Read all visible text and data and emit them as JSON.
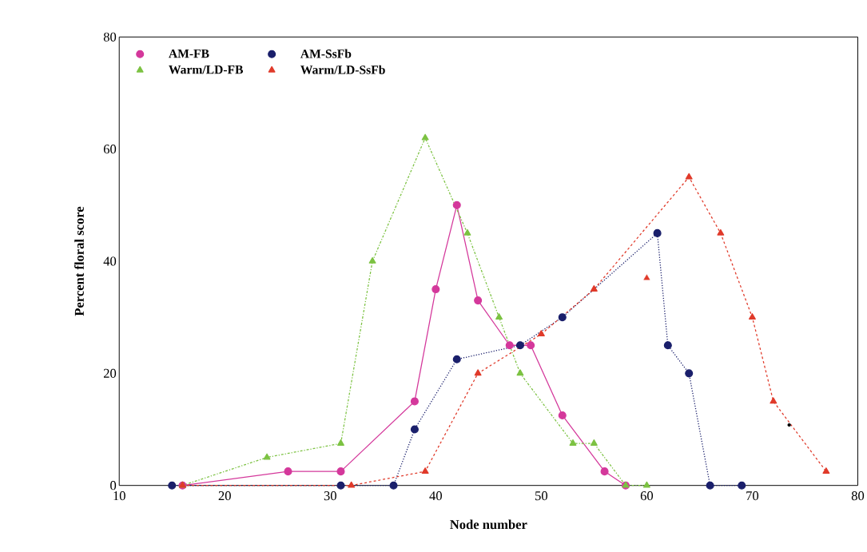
{
  "chart_data": {
    "type": "line",
    "xlabel": "Node number",
    "ylabel": "Percent floral score",
    "xlim": [
      10,
      80
    ],
    "ylim": [
      0,
      80
    ],
    "xticks": [
      10,
      20,
      30,
      40,
      50,
      60,
      70,
      80
    ],
    "yticks": [
      0,
      20,
      40,
      60,
      80
    ],
    "grid": false,
    "legend": "top left",
    "series": [
      {
        "name": "AM-FB",
        "color": "#d4389b",
        "marker": "circle",
        "line_style": "solid",
        "x": [
          16,
          26,
          31,
          38,
          40,
          42,
          44,
          47,
          49,
          52,
          56,
          58
        ],
        "values": [
          0,
          2.5,
          2.5,
          15,
          35,
          50,
          33,
          25,
          25,
          12.5,
          2.5,
          0
        ]
      },
      {
        "name": "AM-SsFb",
        "color": "#1a1f6b",
        "marker": "circle",
        "line_style": "dotted",
        "x": [
          15,
          31,
          36,
          38,
          42,
          48,
          52,
          61,
          62,
          64,
          66,
          69
        ],
        "values": [
          0,
          0,
          0,
          10,
          22.5,
          25,
          30,
          45,
          25,
          20,
          0,
          0
        ]
      },
      {
        "name": "Warm/LD-FB",
        "color": "#7cc242",
        "marker": "triangle",
        "line_style": "dashdot",
        "x": [
          16,
          24,
          31,
          34,
          39,
          43,
          46,
          48,
          53,
          55,
          58,
          60
        ],
        "values": [
          0,
          5,
          7.5,
          40,
          62,
          45,
          30,
          20,
          7.5,
          7.5,
          0,
          0
        ]
      },
      {
        "name": "Warm/LD-SsFb",
        "color": "#e03a2a",
        "marker": "triangle",
        "line_style": "dashed",
        "x": [
          16,
          32,
          39,
          44,
          50,
          55,
          64,
          67,
          70,
          72,
          77
        ],
        "values": [
          0,
          0,
          2.5,
          20,
          27,
          35,
          55,
          45,
          30,
          15,
          2.5
        ]
      },
      {
        "type": "scatter",
        "color": "#e03a2a",
        "marker": "triangle",
        "x": [
          60
        ],
        "values": [
          37
        ]
      },
      {
        "type": "scatter",
        "color": "#000000",
        "marker": "dot",
        "x": [
          73.5
        ],
        "values": [
          10.8
        ]
      }
    ]
  }
}
